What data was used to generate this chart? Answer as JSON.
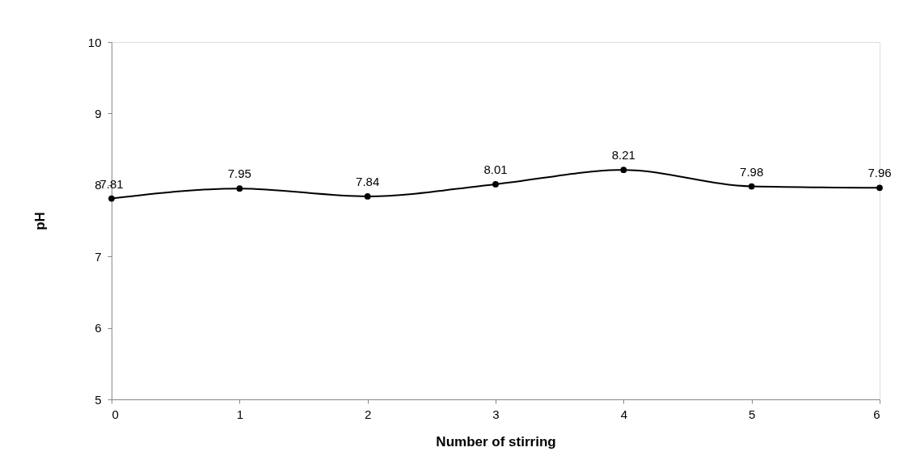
{
  "chart_data": {
    "type": "line",
    "xlabel": "Number of stirring",
    "ylabel": "pH",
    "x": [
      0,
      1,
      2,
      3,
      4,
      5,
      6
    ],
    "values": [
      7.81,
      7.95,
      7.84,
      8.01,
      8.21,
      7.98,
      7.96
    ],
    "color": "#000000",
    "xlim": [
      0,
      6
    ],
    "xticks": [
      0,
      1,
      2,
      3,
      4,
      5,
      6
    ],
    "ylim": [
      5,
      10
    ],
    "yticks": [
      5,
      6,
      7,
      8,
      9,
      10
    ],
    "marker": "circle",
    "data_labels": true,
    "grid": false,
    "line_style": "solid"
  }
}
